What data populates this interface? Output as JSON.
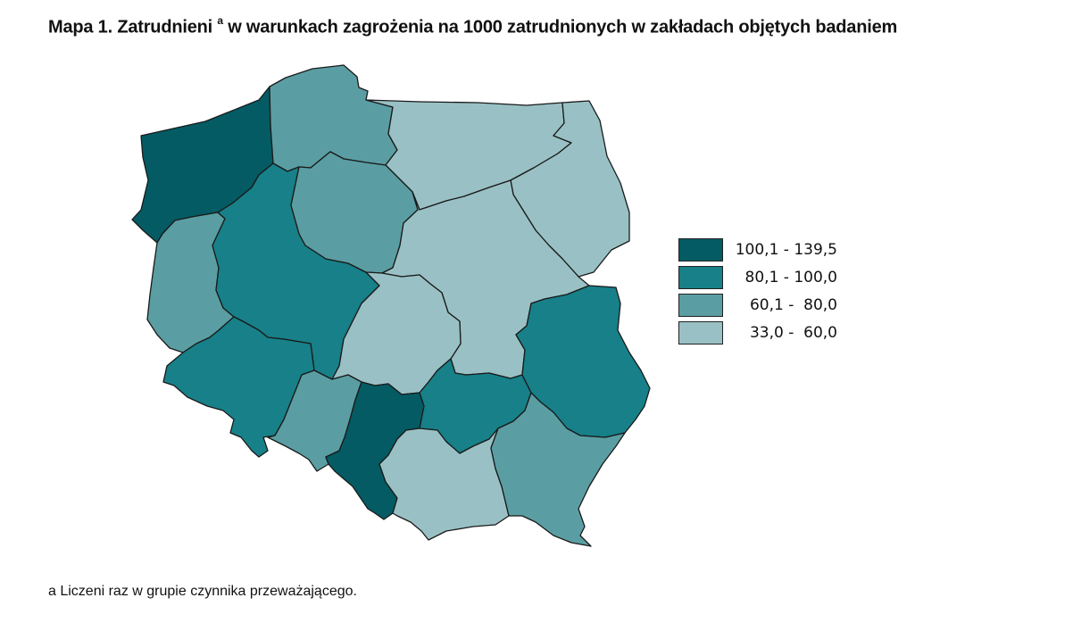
{
  "title": {
    "text": "Mapa 1. Zatrudnieni",
    "marker": "a",
    "rest": "w warunkach zagrożenia na 1000 zatrudnionych w zakładach objętych badaniem"
  },
  "colors": {
    "class1": "#045b63",
    "class2": "#178088",
    "class3": "#5a9ea3",
    "class4": "#99c1c5"
  },
  "legend": [
    {
      "label": "100,1 - 139,5",
      "color": "#045b63"
    },
    {
      "label": " 80,1 - 100,0",
      "color": "#178088"
    },
    {
      "label": " 60,1 -  80,0",
      "color": "#5a9ea3"
    },
    {
      "label": " 33,0 -  60,0",
      "color": "#99c1c5"
    }
  ],
  "regions": [
    {
      "key": "zachodniopomorskie",
      "class": "class1"
    },
    {
      "key": "pomorskie",
      "class": "class3"
    },
    {
      "key": "warminsko-mazurskie",
      "class": "class4"
    },
    {
      "key": "podlaskie",
      "class": "class4"
    },
    {
      "key": "lubuskie",
      "class": "class3"
    },
    {
      "key": "wielkopolskie",
      "class": "class2"
    },
    {
      "key": "kujawsko-pomorskie",
      "class": "class3"
    },
    {
      "key": "mazowieckie",
      "class": "class4"
    },
    {
      "key": "lodzkie",
      "class": "class4"
    },
    {
      "key": "dolnoslaskie",
      "class": "class2"
    },
    {
      "key": "opolskie",
      "class": "class3"
    },
    {
      "key": "slaskie",
      "class": "class1"
    },
    {
      "key": "swietokrzyskie",
      "class": "class2"
    },
    {
      "key": "lubelskie",
      "class": "class2"
    },
    {
      "key": "malopolskie",
      "class": "class4"
    },
    {
      "key": "podkarpackie",
      "class": "class3"
    }
  ],
  "footnote": "a Liczeni raz w grupie czynnika przeważającego."
}
